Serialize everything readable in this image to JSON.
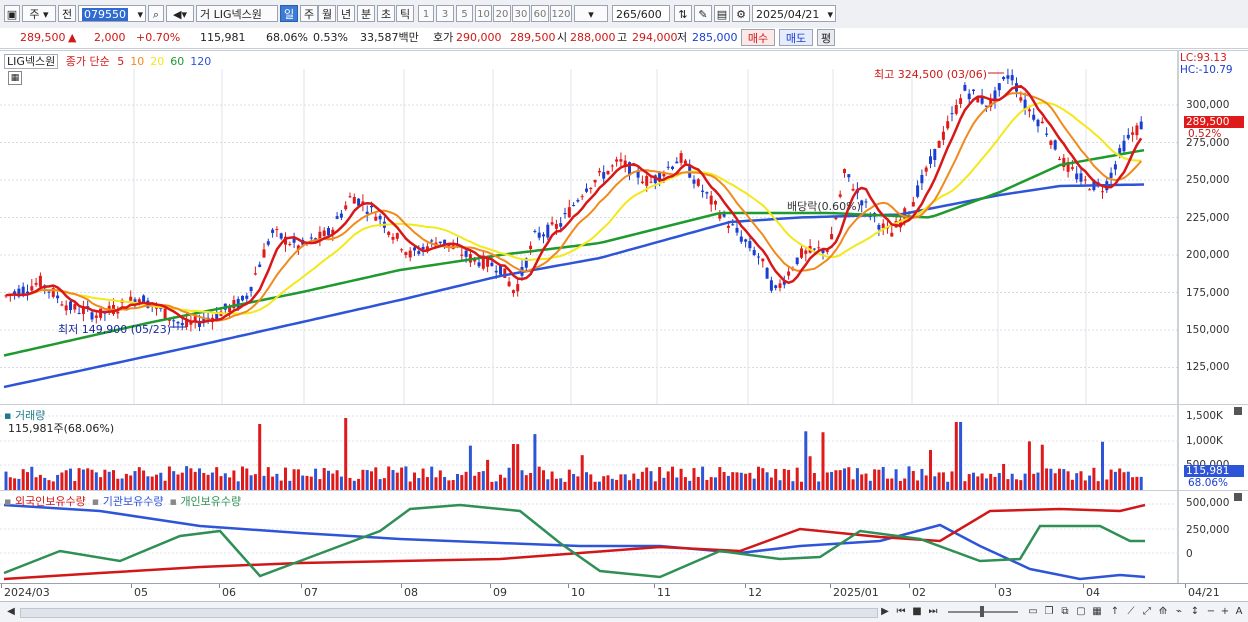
{
  "toolbar": {
    "period_main": "주",
    "prev_label": "전",
    "code": "079550",
    "type_label": "거",
    "stock_name": "LIG넥스원",
    "tabs": [
      "일",
      "주",
      "월",
      "년",
      "분",
      "초",
      "틱"
    ],
    "active_tab": "일",
    "intervals": [
      "1",
      "3",
      "5",
      "10",
      "20",
      "30",
      "60",
      "120"
    ],
    "count": "265",
    "total": "/600",
    "date": "2025/04/21"
  },
  "info": {
    "price": "289,500",
    "change": "2,000",
    "change_pct": "+0.70%",
    "volume": "115,981",
    "vol_ratio": "68.06%",
    "turnover": "0.53%",
    "amount": "33,587백만",
    "ask_label": "호가",
    "ask": "290,000",
    "bid": "289,500",
    "open_label": "시",
    "open": "288,000",
    "high_label": "고",
    "high": "294,000",
    "low_label": "저",
    "low": "285,000",
    "buy_btn": "매수",
    "sell_btn": "매도",
    "eval_btn": "평"
  },
  "price_pane": {
    "stock_tag": "LIG넥스원",
    "ma_title": "종가 단순",
    "ma": [
      {
        "period": "5",
        "color": "#d81818"
      },
      {
        "period": "10",
        "color": "#f08a1c"
      },
      {
        "period": "20",
        "color": "#f3e81a"
      },
      {
        "period": "60",
        "color": "#1e9a2e"
      },
      {
        "period": "120",
        "color": "#2e55d8"
      }
    ],
    "lc": "LC:93.13",
    "hc": "HC:-10.79",
    "y_ticks": [
      "300,000",
      "275,000",
      "250,000",
      "225,000",
      "200,000",
      "175,000",
      "150,000",
      "125,000"
    ],
    "current_price": "289,500",
    "current_pct": "0.52%",
    "high_note": "최고 324,500 (03/06)",
    "low_note": "최저 149,900 (05/23)",
    "dividend_note": "배당락(0.60%)"
  },
  "volume_pane": {
    "title": "거래량",
    "value": "115,981주(68.06%)",
    "y_ticks": [
      "1,500K",
      "1,000K",
      "500,000"
    ],
    "current": "115,981",
    "current_pct": "68.06%"
  },
  "holder_pane": {
    "series": [
      {
        "name": "외국인보유수량",
        "color": "#d01818"
      },
      {
        "name": "기관보유수량",
        "color": "#2e55d8"
      },
      {
        "name": "개인보유수량",
        "color": "#2f8f55"
      }
    ],
    "y_ticks": [
      "500,000",
      "250,000",
      "0"
    ]
  },
  "dates": [
    {
      "label": "2024/03",
      "x": 4
    },
    {
      "label": "05",
      "x": 134
    },
    {
      "label": "06",
      "x": 222
    },
    {
      "label": "07",
      "x": 304
    },
    {
      "label": "08",
      "x": 404
    },
    {
      "label": "09",
      "x": 493
    },
    {
      "label": "10",
      "x": 571
    },
    {
      "label": "11",
      "x": 657
    },
    {
      "label": "12",
      "x": 748
    },
    {
      "label": "2025/01",
      "x": 833
    },
    {
      "label": "02",
      "x": 912
    },
    {
      "label": "03",
      "x": 998
    },
    {
      "label": "04",
      "x": 1086
    },
    {
      "label": "04/21",
      "x": 1188
    }
  ]
}
